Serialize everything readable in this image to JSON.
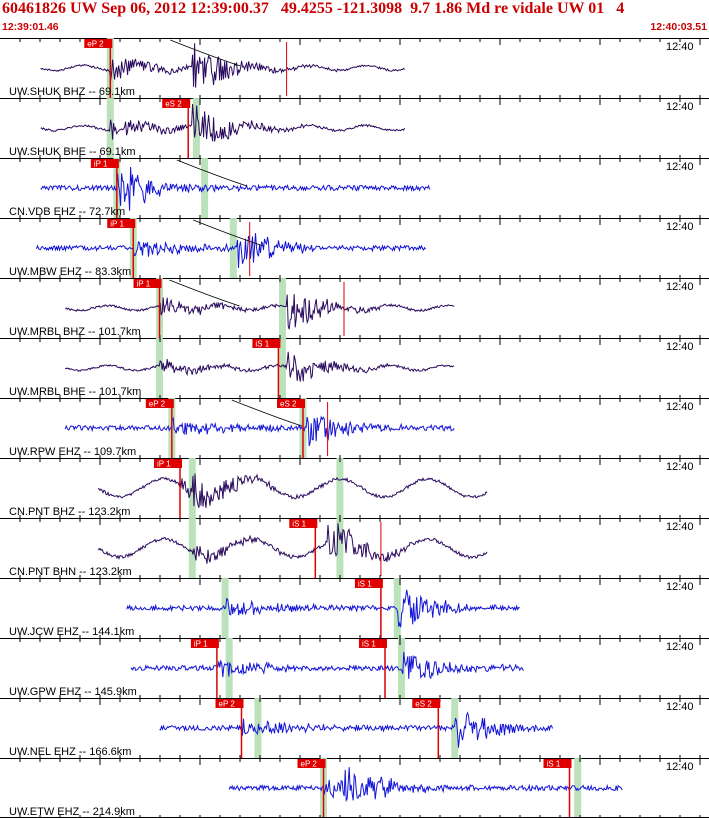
{
  "header": {
    "title": "60461826 UW Sep 06, 2012 12:39:00.37   49.4255 -121.3098  9.7 1.86 Md re vidale UW 01   4",
    "time_start": "12:39:01.46",
    "time_end": "12:40:03.51"
  },
  "colors": {
    "header_text": "#cc0000",
    "pick": "#e00000",
    "window": "#b8e0b8",
    "tick": "#000000",
    "theory_curve": "#000000"
  },
  "traces": [
    {
      "label": "UW.SHUK BHZ -- 69.1km",
      "tick_label": "12:40",
      "color": "#2a0a5e",
      "noise": "long",
      "data_start_sec": 3,
      "data_end_sec": 47.5,
      "p_pick": {
        "label": "eP 2",
        "t": 11.5
      },
      "s_pick": null,
      "windows": [
        11.5
      ],
      "event_sec": 21.5,
      "peak_amp": 26,
      "extra_pick_sec": 33,
      "curve": "start"
    },
    {
      "label": "UW.SHUK BHE -- 69.1km",
      "tick_label": "12:40",
      "color": "#2a0a5e",
      "noise": "long",
      "data_start_sec": 3,
      "data_end_sec": 47.5,
      "p_pick": null,
      "s_pick": {
        "label": "eS 2",
        "t": 21
      },
      "windows": [
        11.5,
        22
      ],
      "event_sec": 21.5,
      "peak_amp": 24,
      "extra_pick_sec": null,
      "curve": null
    },
    {
      "label": "CN.VDB EHZ -- 72.7km",
      "tick_label": "12:40",
      "color": "#1515d8",
      "noise": "short",
      "data_start_sec": 3,
      "data_end_sec": 50.5,
      "p_pick": {
        "label": "iP 1",
        "t": 12.3
      },
      "s_pick": null,
      "windows": [
        12.3,
        23
      ],
      "event_sec": 12.3,
      "peak_amp": 22,
      "extra_pick_sec": null,
      "curve": "mid"
    },
    {
      "label": "UW.MBW EHZ -- 83.3km",
      "tick_label": "12:40",
      "color": "#1515d8",
      "noise": "short",
      "data_start_sec": 2.5,
      "data_end_sec": 50,
      "p_pick": {
        "label": "iP 1",
        "t": 14.3
      },
      "s_pick": null,
      "windows": [
        14.3,
        26.5
      ],
      "event_sec": 27,
      "peak_amp": 22,
      "extra_pick_sec": 28.5,
      "curve": "mid"
    },
    {
      "label": "UW.MRBL BHZ -- 101.7km",
      "tick_label": "12:40",
      "color": "#2a0a5e",
      "noise": "long",
      "data_start_sec": 6,
      "data_end_sec": 53.5,
      "p_pick": {
        "label": "iP 1",
        "t": 17.5
      },
      "s_pick": null,
      "windows": [
        17.5,
        32.5
      ],
      "event_sec": 33,
      "peak_amp": 24,
      "extra_pick_sec": 40,
      "curve": "end"
    },
    {
      "label": "UW.MRBL BHE -- 101.7km",
      "tick_label": "12:40",
      "color": "#2a0a5e",
      "noise": "long",
      "data_start_sec": 6,
      "data_end_sec": 53.5,
      "p_pick": null,
      "s_pick": {
        "label": "iS 1",
        "t": 32
      },
      "windows": [
        17.5,
        32.5
      ],
      "event_sec": 33,
      "peak_amp": 18,
      "extra_pick_sec": null,
      "curve": null
    },
    {
      "label": "UW.RPW EHZ -- 109.7km",
      "tick_label": "12:40",
      "color": "#1515d8",
      "noise": "short",
      "data_start_sec": 6,
      "data_end_sec": 53.5,
      "p_pick": {
        "label": "eP 2",
        "t": 19
      },
      "s_pick": {
        "label": "eS 2",
        "t": 35
      },
      "windows": [
        19,
        35
      ],
      "event_sec": 35.5,
      "peak_amp": 18,
      "extra_pick_sec": 38,
      "curve": "start"
    },
    {
      "label": "CN.PNT BHZ -- 123.2km",
      "tick_label": "12:40",
      "color": "#2a0a5e",
      "noise": "wavy",
      "data_start_sec": 10,
      "data_end_sec": 57.5,
      "p_pick": {
        "label": "iP 1",
        "t": 20
      },
      "s_pick": null,
      "windows": [
        21.5,
        39.5
      ],
      "event_sec": 21.5,
      "peak_amp": 20,
      "extra_pick_sec": null,
      "curve": null
    },
    {
      "label": "CN.PNT BHN -- 123.2km",
      "tick_label": "12:40",
      "color": "#2a0a5e",
      "noise": "wavy",
      "data_start_sec": 10,
      "data_end_sec": 57.5,
      "p_pick": null,
      "s_pick": {
        "label": "iS 1",
        "t": 36.5
      },
      "windows": [
        21.5,
        39.5
      ],
      "event_sec": 38,
      "peak_amp": 24,
      "extra_pick_sec": 44.5,
      "curve": null
    },
    {
      "label": "UW.JCW EHZ -- 144.1km",
      "tick_label": "12:40",
      "color": "#1515d8",
      "noise": "short",
      "data_start_sec": 13.5,
      "data_end_sec": 61.5,
      "p_pick": null,
      "s_pick": {
        "label": "iS 1",
        "t": 44.5
      },
      "windows": [
        25.5,
        46.5
      ],
      "event_sec": 46.5,
      "peak_amp": 22,
      "extra_pick_sec": null,
      "curve": null
    },
    {
      "label": "UW.GPW EHZ -- 145.9km",
      "tick_label": "12:40",
      "color": "#1515d8",
      "noise": "short",
      "data_start_sec": 14,
      "data_end_sec": 62,
      "p_pick": {
        "label": "iP 1",
        "t": 24.5
      },
      "s_pick": {
        "label": "iS 1",
        "t": 45
      },
      "windows": [
        26,
        47
      ],
      "event_sec": 47,
      "peak_amp": 20,
      "extra_pick_sec": null,
      "curve": null
    },
    {
      "label": "UW.NEL EHZ -- 166.6km",
      "tick_label": "12:40",
      "color": "#1515d8",
      "noise": "short",
      "data_start_sec": 17.5,
      "data_end_sec": 65.5,
      "p_pick": {
        "label": "eP 2",
        "t": 27.5
      },
      "s_pick": {
        "label": "eS 2",
        "t": 51.5
      },
      "windows": [
        29.5,
        53.5
      ],
      "event_sec": 53.5,
      "peak_amp": 22,
      "extra_pick_sec": null,
      "curve": null
    },
    {
      "label": "UW.ETW EHZ -- 214.9km",
      "tick_label": "12:40",
      "color": "#1515d8",
      "noise": "short",
      "data_start_sec": 26,
      "data_end_sec": 74,
      "p_pick": {
        "label": "eP 2",
        "t": 37.5
      },
      "s_pick": {
        "label": "iS 1",
        "t": 67.5
      },
      "windows": [
        37.5,
        68.5
      ],
      "event_sec": 40,
      "peak_amp": 22,
      "extra_pick_sec": null,
      "curve": null
    }
  ]
}
